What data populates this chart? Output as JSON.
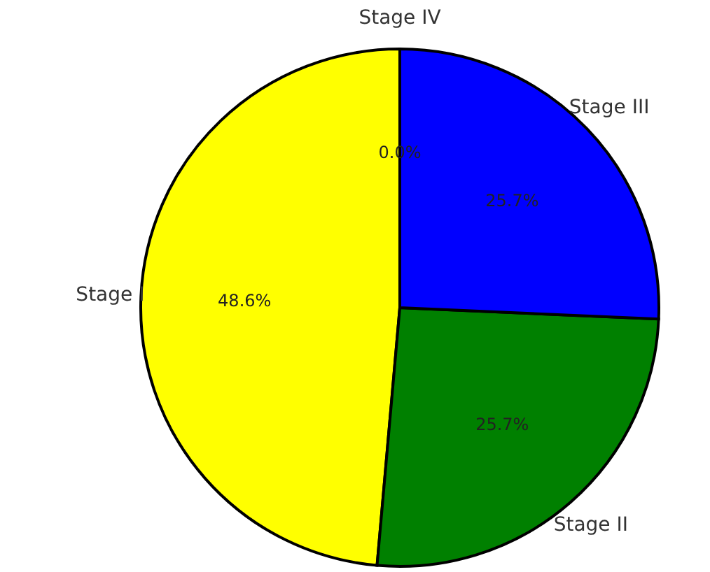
{
  "chart_data": {
    "type": "pie",
    "categories": [
      "Stage I",
      "Stage II",
      "Stage III",
      "Stage IV"
    ],
    "values": [
      48.6,
      25.7,
      25.7,
      0.0
    ],
    "colors": [
      "#ffff00",
      "#008000",
      "#0000ff",
      "#ff0000"
    ],
    "value_labels": [
      "48.6%",
      "25.7%",
      "25.7%",
      "0.0%"
    ]
  }
}
